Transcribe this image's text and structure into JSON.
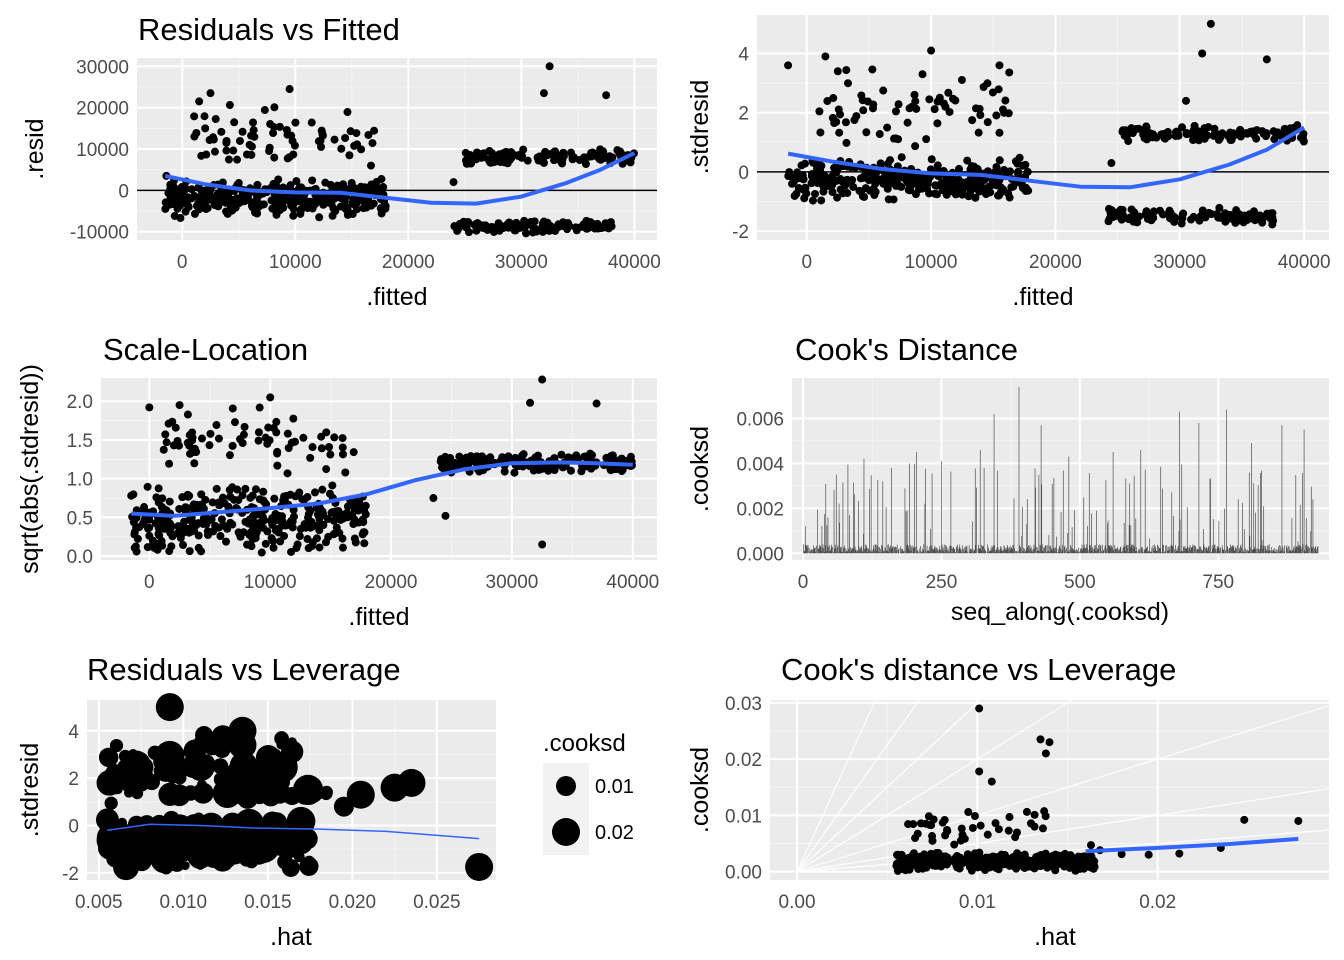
{
  "chart_data": [
    {
      "id": "rvf",
      "type": "scatter",
      "title": "Residuals vs Fitted",
      "xlabel": ".fitted",
      "ylabel": ".resid",
      "xlim": [
        -4000,
        42000
      ],
      "ylim": [
        -12000,
        32000
      ],
      "xticks": [
        0,
        10000,
        20000,
        30000,
        40000
      ],
      "yticks": [
        -10000,
        0,
        10000,
        20000,
        30000
      ],
      "hline": 0,
      "smooth": [
        [
          -1500,
          3500
        ],
        [
          2000,
          1500
        ],
        [
          6000,
          0
        ],
        [
          10000,
          -500
        ],
        [
          14000,
          -600
        ],
        [
          18000,
          -1800
        ],
        [
          22000,
          -3000
        ],
        [
          26000,
          -3200
        ],
        [
          30000,
          -1500
        ],
        [
          34000,
          1800
        ],
        [
          37000,
          5000
        ],
        [
          40000,
          9000
        ]
      ],
      "clusters": [
        {
          "x0": -1500,
          "x1": 18000,
          "y0": -7000,
          "y1": 3000,
          "n": 340,
          "seed": 11
        },
        {
          "x0": 1000,
          "x1": 17000,
          "y0": 4000,
          "y1": 21000,
          "n": 70,
          "seed": 12
        },
        {
          "x0": 25000,
          "x1": 40000,
          "y0": 6000,
          "y1": 10000,
          "n": 120,
          "seed": 13
        },
        {
          "x0": 24000,
          "x1": 38000,
          "y0": -10500,
          "y1": -7000,
          "n": 120,
          "seed": 14
        }
      ],
      "points": [
        [
          -1400,
          3500
        ],
        [
          1500,
          21500
        ],
        [
          2500,
          23500
        ],
        [
          9500,
          24500
        ],
        [
          32500,
          30000
        ],
        [
          32000,
          23500
        ],
        [
          37500,
          23000
        ],
        [
          24000,
          2000
        ],
        [
          26000,
          7500
        ],
        [
          34000,
          -8000
        ]
      ]
    },
    {
      "id": "sdf",
      "type": "scatter",
      "title": "",
      "xlabel": ".fitted",
      "ylabel": ".stdresid",
      "xlim": [
        -4000,
        42000
      ],
      "ylim": [
        -2.3,
        5.3
      ],
      "xticks": [
        0,
        10000,
        20000,
        30000,
        40000
      ],
      "yticks": [
        -2,
        0,
        2,
        4
      ],
      "hline": 0,
      "smooth": [
        [
          -1500,
          0.62
        ],
        [
          2000,
          0.35
        ],
        [
          6000,
          0.1
        ],
        [
          10000,
          -0.05
        ],
        [
          14000,
          -0.1
        ],
        [
          18000,
          -0.3
        ],
        [
          22000,
          -0.5
        ],
        [
          26000,
          -0.52
        ],
        [
          30000,
          -0.25
        ],
        [
          34000,
          0.25
        ],
        [
          37000,
          0.75
        ],
        [
          40000,
          1.5
        ]
      ],
      "clusters": [
        {
          "x0": -1500,
          "x1": 18000,
          "y0": -1.0,
          "y1": 0.5,
          "n": 340,
          "seed": 21
        },
        {
          "x0": 1000,
          "x1": 17000,
          "y0": 0.7,
          "y1": 3.6,
          "n": 70,
          "seed": 22
        },
        {
          "x0": 25000,
          "x1": 40000,
          "y0": 1.0,
          "y1": 1.6,
          "n": 120,
          "seed": 23
        },
        {
          "x0": 24000,
          "x1": 38000,
          "y0": -1.8,
          "y1": -1.2,
          "n": 120,
          "seed": 24
        }
      ],
      "points": [
        [
          -1500,
          3.6
        ],
        [
          1500,
          3.9
        ],
        [
          2500,
          3.4
        ],
        [
          10000,
          4.1
        ],
        [
          15500,
          3.6
        ],
        [
          32500,
          5.0
        ],
        [
          31800,
          4.0
        ],
        [
          37000,
          3.8
        ],
        [
          24500,
          0.3
        ],
        [
          30500,
          2.4
        ]
      ]
    },
    {
      "id": "sl",
      "type": "scatter",
      "title": "Scale-Location",
      "xlabel": ".fitted",
      "ylabel": "sqrt(abs(.stdresid))",
      "xlim": [
        -4000,
        42000
      ],
      "ylim": [
        -0.05,
        2.3
      ],
      "xticks": [
        0,
        10000,
        20000,
        30000,
        40000
      ],
      "yticks": [
        0.0,
        0.5,
        1.0,
        1.5,
        2.0
      ],
      "ytick_labels": [
        "0.0",
        "0.5",
        "1.0",
        "1.5",
        "2.0"
      ],
      "smooth": [
        [
          -1500,
          0.55
        ],
        [
          2000,
          0.52
        ],
        [
          6000,
          0.57
        ],
        [
          10000,
          0.62
        ],
        [
          14000,
          0.68
        ],
        [
          18000,
          0.8
        ],
        [
          22000,
          0.98
        ],
        [
          26000,
          1.12
        ],
        [
          30000,
          1.2
        ],
        [
          34000,
          1.21
        ],
        [
          37000,
          1.2
        ],
        [
          40000,
          1.18
        ]
      ],
      "clusters": [
        {
          "x0": -1500,
          "x1": 18000,
          "y0": 0.0,
          "y1": 0.95,
          "n": 360,
          "seed": 31
        },
        {
          "x0": 1000,
          "x1": 17000,
          "y0": 1.0,
          "y1": 1.95,
          "n": 70,
          "seed": 32
        },
        {
          "x0": 24000,
          "x1": 40000,
          "y0": 1.05,
          "y1": 1.35,
          "n": 200,
          "seed": 33
        }
      ],
      "points": [
        [
          -1500,
          0.78
        ],
        [
          0,
          1.92
        ],
        [
          2500,
          1.95
        ],
        [
          10000,
          2.05
        ],
        [
          32500,
          2.28
        ],
        [
          31500,
          1.98
        ],
        [
          37000,
          1.97
        ],
        [
          32500,
          0.15
        ],
        [
          24500,
          0.52
        ],
        [
          23500,
          0.75
        ]
      ]
    },
    {
      "id": "cd",
      "type": "bar",
      "title": "Cook's Distance",
      "xlabel": "seq_along(.cooksd)",
      "ylabel": ".cooksd",
      "xlim": [
        -20,
        950
      ],
      "ylim": [
        -0.0003,
        0.0078
      ],
      "xticks": [
        0,
        250,
        500,
        750
      ],
      "yticks": [
        0.0,
        0.002,
        0.004,
        0.006
      ],
      "ytick_labels": [
        "0.000",
        "0.002",
        "0.004",
        "0.006"
      ],
      "n": 930,
      "spikes": [
        [
          60,
          0.0035
        ],
        [
          110,
          0.0042
        ],
        [
          160,
          0.0038
        ],
        [
          205,
          0.0045
        ],
        [
          250,
          0.0041
        ],
        [
          320,
          0.0046
        ],
        [
          345,
          0.0062
        ],
        [
          390,
          0.0074
        ],
        [
          430,
          0.0057
        ],
        [
          480,
          0.0043
        ],
        [
          560,
          0.0045
        ],
        [
          610,
          0.0046
        ],
        [
          680,
          0.0063
        ],
        [
          715,
          0.0058
        ],
        [
          765,
          0.0064
        ],
        [
          810,
          0.0049
        ],
        [
          865,
          0.0057
        ],
        [
          905,
          0.0055
        ]
      ]
    },
    {
      "id": "rvl",
      "type": "scatter",
      "title": "Residuals vs Leverage",
      "xlabel": ".hat",
      "ylabel": ".stdresid",
      "xlim": [
        0.0043,
        0.0285
      ],
      "ylim": [
        -2.3,
        5.3
      ],
      "xticks": [
        0.005,
        0.01,
        0.015,
        0.02,
        0.025
      ],
      "xtick_labels": [
        "0.005",
        "0.010",
        "0.015",
        "0.020",
        "0.025"
      ],
      "yticks": [
        -2,
        0,
        2,
        4
      ],
      "smooth": [
        [
          0.0055,
          -0.2
        ],
        [
          0.008,
          0.05
        ],
        [
          0.011,
          0.0
        ],
        [
          0.014,
          -0.1
        ],
        [
          0.018,
          -0.15
        ],
        [
          0.022,
          -0.25
        ],
        [
          0.0275,
          -0.55
        ]
      ],
      "clusters": [
        {
          "x0": 0.0055,
          "x1": 0.0175,
          "y0": -1.9,
          "y1": 0.5,
          "n": 260,
          "seed": 51
        },
        {
          "x0": 0.0055,
          "x1": 0.0165,
          "y0": 0.8,
          "y1": 4.0,
          "n": 90,
          "seed": 52
        },
        {
          "x0": 0.012,
          "x1": 0.019,
          "y0": 1.1,
          "y1": 1.6,
          "n": 40,
          "seed": 53
        }
      ],
      "points": [
        [
          0.0092,
          5.0
        ],
        [
          0.0135,
          4.0
        ],
        [
          0.0135,
          3.4
        ],
        [
          0.0235,
          1.8
        ],
        [
          0.0275,
          -1.75
        ],
        [
          0.0205,
          1.3
        ],
        [
          0.0225,
          1.6
        ],
        [
          0.0195,
          0.8
        ]
      ],
      "legend": {
        "title": ".cooksd",
        "entries": [
          "0.01",
          "0.02"
        ],
        "values": [
          0.01,
          0.02
        ]
      }
    },
    {
      "id": "cdl",
      "type": "scatter",
      "title": "Cook's distance vs Leverage",
      "xlabel": ".hat",
      "ylabel": ".cooksd",
      "xlim": [
        -0.0015,
        0.0295
      ],
      "ylim": [
        -0.0015,
        0.0305
      ],
      "xticks": [
        0,
        0.01,
        0.02
      ],
      "xtick_labels": [
        "0.00",
        "0.01",
        "0.02"
      ],
      "yticks": [
        0,
        0.01,
        0.02,
        0.03
      ],
      "ytick_labels": [
        "0.00",
        "0.01",
        "0.02",
        "0.03"
      ],
      "contour_slopes": [
        0.25,
        0.5,
        1.0,
        2.0,
        3.0,
        4.5,
        7.0
      ],
      "smooth": [
        [
          0.016,
          0.0036
        ],
        [
          0.02,
          0.0042
        ],
        [
          0.024,
          0.0049
        ],
        [
          0.0278,
          0.0058
        ]
      ],
      "clusters": [
        {
          "x0": 0.0055,
          "x1": 0.0165,
          "y0": 0.0,
          "y1": 0.0035,
          "n": 380,
          "seed": 61
        },
        {
          "x0": 0.006,
          "x1": 0.014,
          "y0": 0.004,
          "y1": 0.012,
          "n": 40,
          "seed": 62
        }
      ],
      "points": [
        [
          0.0101,
          0.029
        ],
        [
          0.0135,
          0.0235
        ],
        [
          0.014,
          0.023
        ],
        [
          0.0138,
          0.021
        ],
        [
          0.0101,
          0.0178
        ],
        [
          0.0108,
          0.016
        ],
        [
          0.0278,
          0.009
        ],
        [
          0.0248,
          0.0092
        ],
        [
          0.0235,
          0.0042
        ],
        [
          0.0212,
          0.0032
        ],
        [
          0.0195,
          0.003
        ],
        [
          0.018,
          0.0031
        ],
        [
          0.0168,
          0.0038
        ],
        [
          0.0155,
          0.0015
        ],
        [
          0.0163,
          0.0047
        ]
      ]
    }
  ]
}
